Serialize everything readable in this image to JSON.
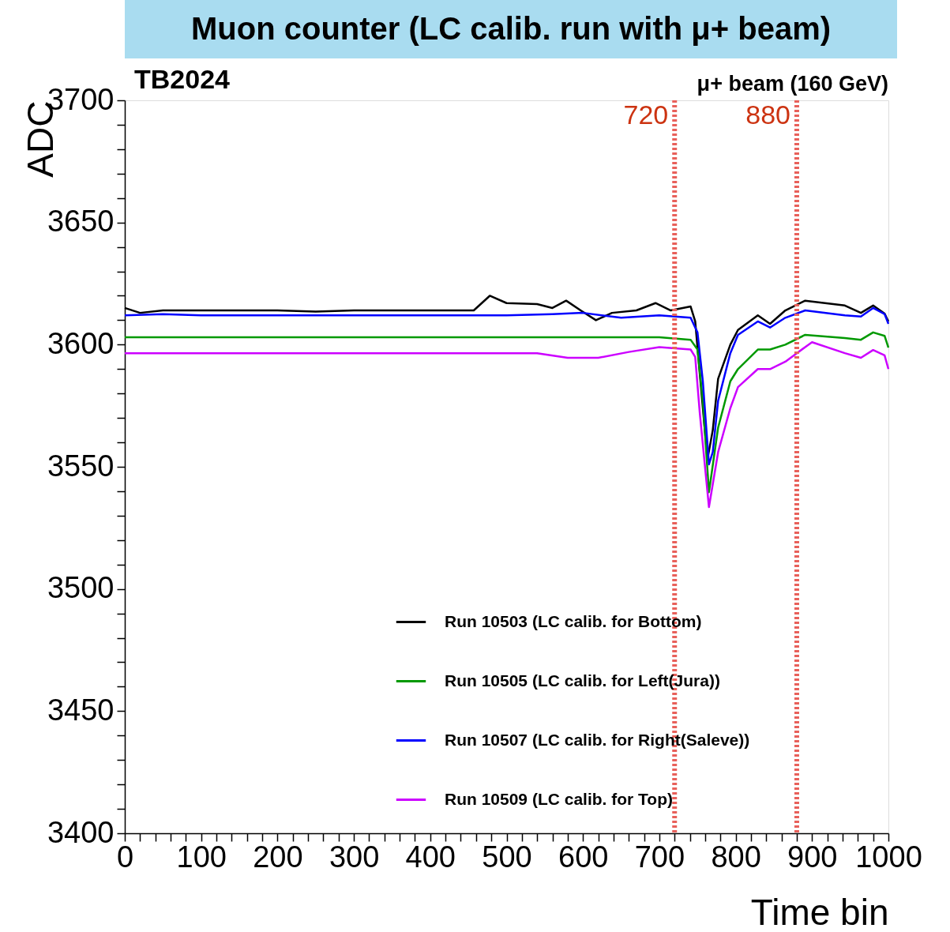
{
  "chart_data": {
    "type": "line",
    "title": "Muon counter (LC calib. run with μ+ beam)",
    "subtitle": "TB2024",
    "annotations": [
      "μ+ beam (160 GeV)"
    ],
    "xlabel": "Time bin",
    "ylabel": "ADC",
    "xlim": [
      0,
      1000
    ],
    "ylim": [
      3400,
      3700
    ],
    "xticks": [
      0,
      {
        "value": 20,
        "label": null
      },
      {
        "value": 40,
        "label": null
      },
      {
        "value": 60,
        "label": null
      },
      {
        "value": 80,
        "label": null
      },
      100,
      {
        "value": 120,
        "label": null
      },
      {
        "value": 140,
        "label": null
      },
      {
        "value": 160,
        "label": null
      },
      {
        "value": 180,
        "label": null
      },
      200,
      {
        "value": 220,
        "label": null
      },
      {
        "value": 240,
        "label": null
      },
      {
        "value": 260,
        "label": null
      },
      {
        "value": 280,
        "label": null
      },
      300,
      {
        "value": 320,
        "label": null
      },
      {
        "value": 340,
        "label": null
      },
      {
        "value": 360,
        "label": null
      },
      {
        "value": 380,
        "label": null
      },
      400,
      {
        "value": 420,
        "label": null
      },
      {
        "value": 440,
        "label": null
      },
      {
        "value": 460,
        "label": null
      },
      {
        "value": 480,
        "label": null
      },
      500,
      {
        "value": 520,
        "label": null
      },
      {
        "value": 540,
        "label": null
      },
      {
        "value": 560,
        "label": null
      },
      {
        "value": 580,
        "label": null
      },
      600,
      {
        "value": 620,
        "label": null
      },
      {
        "value": 640,
        "label": null
      },
      {
        "value": 660,
        "label": null
      },
      {
        "value": 680,
        "label": null
      },
      700,
      {
        "value": 720,
        "label": null
      },
      {
        "value": 740,
        "label": null
      },
      {
        "value": 760,
        "label": null
      },
      {
        "value": 780,
        "label": null
      },
      800,
      {
        "value": 820,
        "label": null
      },
      {
        "value": 840,
        "label": null
      },
      {
        "value": 860,
        "label": null
      },
      {
        "value": 880,
        "label": null
      },
      900,
      {
        "value": 920,
        "label": null
      },
      {
        "value": 940,
        "label": null
      },
      {
        "value": 960,
        "label": null
      },
      {
        "value": 980,
        "label": null
      },
      1000
    ],
    "yticks": [
      3400,
      {
        "value": 3410,
        "label": null
      },
      {
        "value": 3420,
        "label": null
      },
      {
        "value": 3430,
        "label": null
      },
      {
        "value": 3440,
        "label": null
      },
      3450,
      {
        "value": 3460,
        "label": null
      },
      {
        "value": 3470,
        "label": null
      },
      {
        "value": 3480,
        "label": null
      },
      {
        "value": 3490,
        "label": null
      },
      3500,
      {
        "value": 3510,
        "label": null
      },
      {
        "value": 3520,
        "label": null
      },
      {
        "value": 3530,
        "label": null
      },
      {
        "value": 3540,
        "label": null
      },
      3550,
      {
        "value": 3560,
        "label": null
      },
      {
        "value": 3570,
        "label": null
      },
      {
        "value": 3580,
        "label": null
      },
      {
        "value": 3590,
        "label": null
      },
      3600,
      {
        "value": 3610,
        "label": null
      },
      {
        "value": 3620,
        "label": null
      },
      {
        "value": 3630,
        "label": null
      },
      {
        "value": 3640,
        "label": null
      },
      3650,
      {
        "value": 3660,
        "label": null
      },
      {
        "value": 3670,
        "label": null
      },
      {
        "value": 3680,
        "label": null
      },
      {
        "value": 3690,
        "label": null
      },
      3700
    ],
    "grid": false,
    "legend": "bottom right",
    "line_style": "solid",
    "ref_lines": [
      {
        "axis": "x",
        "value": 720,
        "label": "720",
        "color": "#e8605a",
        "line_style": "dotted"
      },
      {
        "axis": "x",
        "value": 880,
        "label": "880",
        "color": "#e8605a",
        "line_style": "dotted"
      }
    ],
    "series": [
      {
        "name": "Run 10503 (LC calib. for Bottom)",
        "color": "#000000",
        "x": [
          0,
          20,
          50,
          100,
          150,
          200,
          250,
          300,
          350,
          400,
          440,
          457,
          478,
          500,
          540,
          560,
          578,
          597,
          617,
          638,
          670,
          695,
          715,
          741,
          747,
          753,
          763,
          770,
          777,
          793,
          803,
          829,
          845,
          865,
          891,
          943,
          964,
          980,
          995,
          1000
        ],
        "values": [
          3615,
          3613,
          3614,
          3614,
          3614,
          3614,
          3613.5,
          3614,
          3614,
          3614,
          3614,
          3614,
          3620,
          3617,
          3616.6,
          3615,
          3618,
          3614,
          3610,
          3613,
          3614,
          3617,
          3614,
          3615.6,
          3609.5,
          3588,
          3553,
          3565,
          3586,
          3600,
          3606,
          3612,
          3608.5,
          3614,
          3618,
          3616,
          3613,
          3616,
          3612.7,
          3609.5
        ]
      },
      {
        "name": "Run 10505 (LC calib. for Left(Jura))",
        "color": "#009900",
        "x": [
          0,
          50,
          100,
          200,
          300,
          400,
          500,
          600,
          700,
          741,
          750,
          757,
          765,
          777,
          793,
          803,
          829,
          845,
          865,
          891,
          943,
          964,
          980,
          995,
          1000
        ],
        "values": [
          3603,
          3603,
          3603,
          3603,
          3603,
          3603,
          3603,
          3603,
          3603,
          3602,
          3598,
          3577,
          3539.6,
          3566,
          3585,
          3590,
          3598,
          3598,
          3600,
          3604,
          3602.7,
          3602,
          3605,
          3603.6,
          3598.8
        ]
      },
      {
        "name": "Run 10507 (LC calib. for Right(Saleve))",
        "color": "#0000ff",
        "x": [
          0,
          50,
          100,
          200,
          300,
          400,
          500,
          560,
          600,
          650,
          700,
          741,
          750,
          757,
          765,
          770,
          777,
          793,
          803,
          829,
          845,
          865,
          891,
          943,
          964,
          980,
          995,
          1000
        ],
        "values": [
          3612,
          3612.5,
          3612,
          3612,
          3612,
          3612,
          3612,
          3612.5,
          3613,
          3611,
          3612,
          3611,
          3605,
          3585,
          3551,
          3556,
          3577,
          3596.5,
          3604,
          3609.5,
          3607,
          3611,
          3614,
          3612,
          3611.5,
          3615,
          3612.5,
          3608.5
        ]
      },
      {
        "name": "Run 10509 (LC calib. for Top)",
        "color": "#cc00ff",
        "x": [
          0,
          50,
          100,
          200,
          300,
          400,
          500,
          540,
          580,
          620,
          660,
          700,
          741,
          747,
          753,
          765,
          777,
          793,
          803,
          829,
          845,
          865,
          891,
          900,
          943,
          964,
          980,
          995,
          1000
        ],
        "values": [
          3596.5,
          3596.5,
          3596.5,
          3596.5,
          3596.5,
          3596.5,
          3596.5,
          3596.5,
          3594.6,
          3594.6,
          3597,
          3599,
          3598,
          3595,
          3572,
          3533.5,
          3556,
          3574,
          3582.6,
          3590,
          3590,
          3593,
          3599,
          3601,
          3596.5,
          3594.6,
          3597.8,
          3595.6,
          3590
        ]
      }
    ]
  }
}
